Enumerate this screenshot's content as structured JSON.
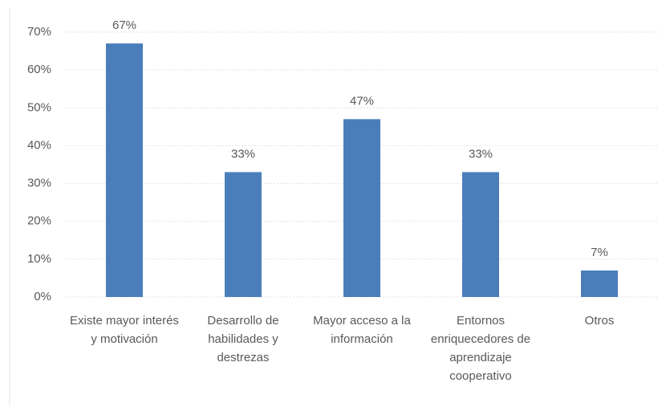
{
  "chart_data": {
    "type": "bar",
    "categories": [
      "Existe mayor interés y motivación",
      "Desarrollo de habilidades y destrezas",
      "Mayor acceso a la información",
      "Entornos enriquecedores de aprendizaje cooperativo",
      "Otros"
    ],
    "values": [
      67,
      33,
      47,
      33,
      7
    ],
    "value_labels": [
      "67%",
      "33%",
      "47%",
      "33%",
      "7%"
    ],
    "color": "#4a7ebb",
    "ylim": [
      0,
      70
    ],
    "yticks": [
      {
        "value": 0,
        "label": "0%"
      },
      {
        "value": 10,
        "label": "10%"
      },
      {
        "value": 20,
        "label": "20%"
      },
      {
        "value": 30,
        "label": "30%"
      },
      {
        "value": 40,
        "label": "40%"
      },
      {
        "value": 50,
        "label": "50%"
      },
      {
        "value": 60,
        "label": "60%"
      },
      {
        "value": 70,
        "label": "70%"
      }
    ],
    "grid": true
  }
}
